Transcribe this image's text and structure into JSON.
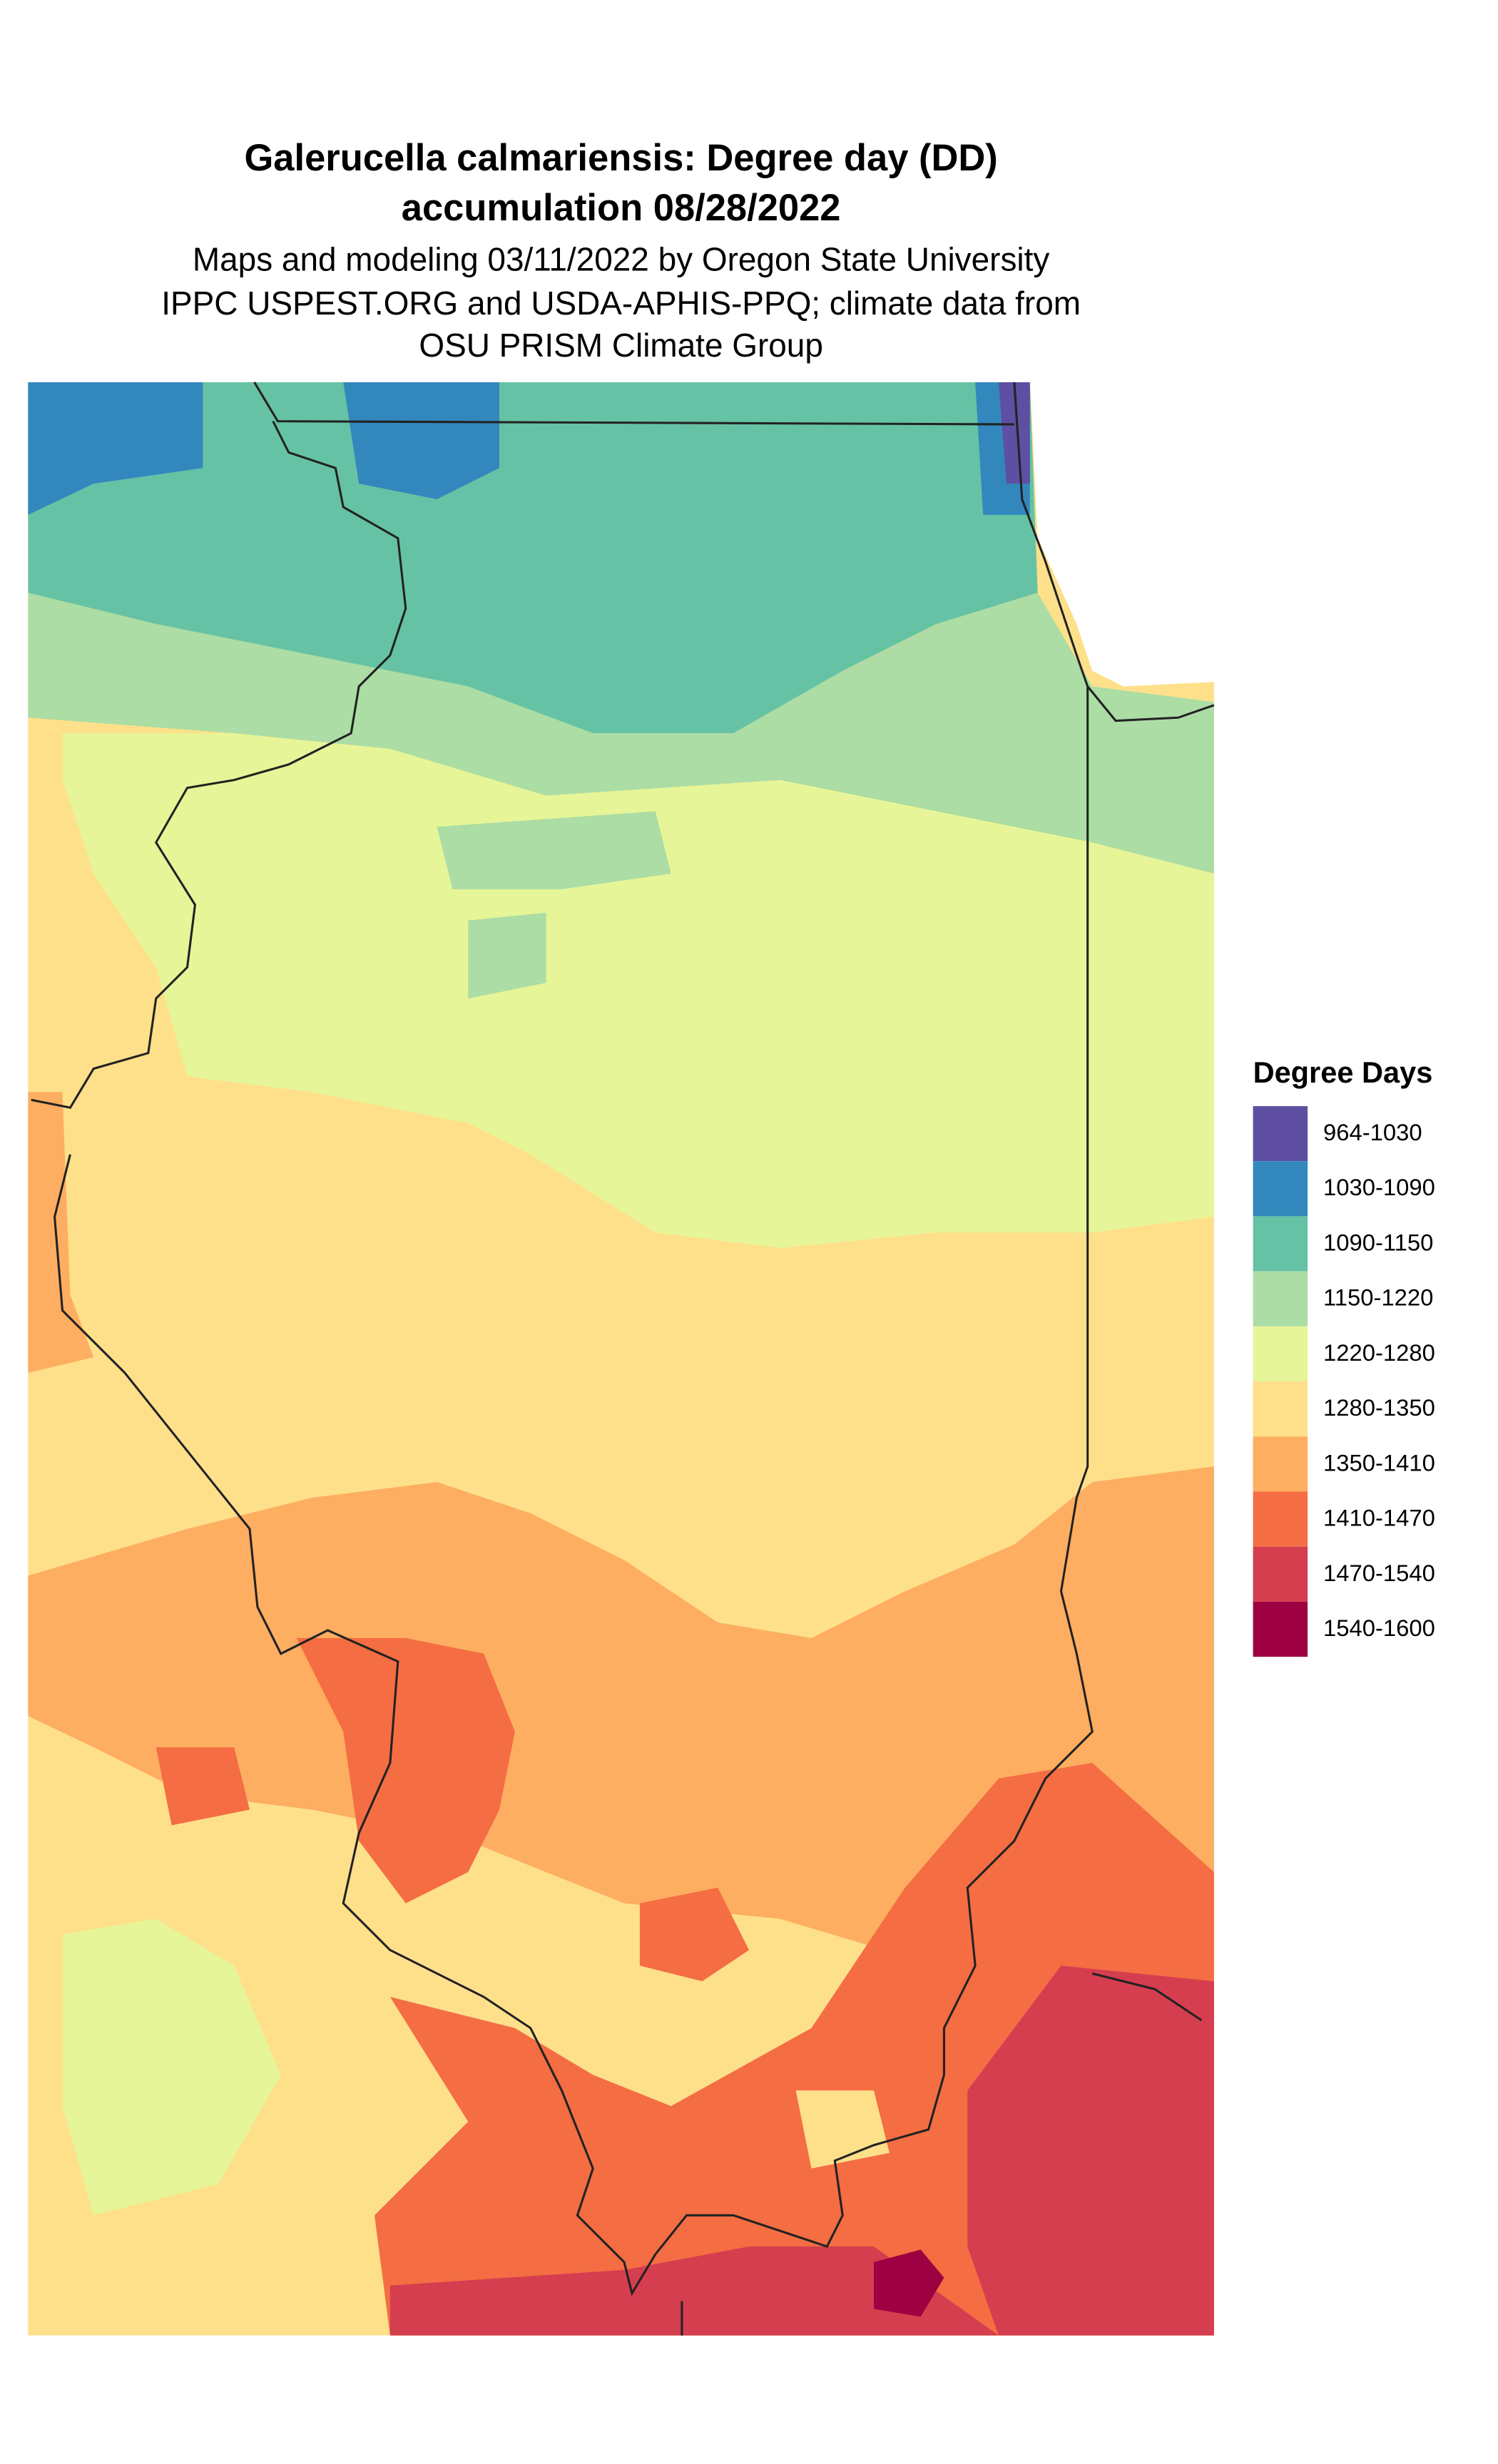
{
  "title": [
    "Galerucella calmariensis: Degree day (DD)",
    "accumulation 08/28/2022"
  ],
  "subtitle": [
    "Maps and modeling 03/11/2022 by Oregon State University",
    "IPPC USPEST.ORG and USDA-APHIS-PPQ; climate data from",
    "OSU PRISM Climate Group"
  ],
  "legend": {
    "title": "Degree Days",
    "items": [
      {
        "label": "964-1030",
        "color": "#5e4fa2"
      },
      {
        "label": "1030-1090",
        "color": "#3288bd"
      },
      {
        "label": "1090-1150",
        "color": "#66c2a5"
      },
      {
        "label": "1150-1220",
        "color": "#abdda4"
      },
      {
        "label": "1220-1280",
        "color": "#e6f598"
      },
      {
        "label": "1280-1350",
        "color": "#fee08b"
      },
      {
        "label": "1350-1410",
        "color": "#fdae61"
      },
      {
        "label": "1410-1470",
        "color": "#f46d43"
      },
      {
        "label": "1470-1540",
        "color": "#d53e4f"
      },
      {
        "label": "1540-1600",
        "color": "#9e0142"
      }
    ]
  }
}
